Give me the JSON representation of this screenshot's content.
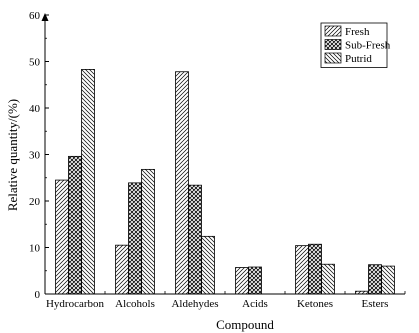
{
  "chart_data": {
    "type": "bar",
    "categories": [
      "Hydrocarbon",
      "Alcohols",
      "Aldehydes",
      "Acids",
      "Ketones",
      "Esters"
    ],
    "series": [
      {
        "name": "Fresh",
        "values": [
          24.5,
          10.5,
          47.8,
          5.7,
          10.4,
          0.6
        ],
        "pattern": "forward-hatch"
      },
      {
        "name": "Sub-Fresh",
        "values": [
          29.6,
          23.9,
          23.4,
          5.8,
          10.7,
          6.3
        ],
        "pattern": "crosshatch"
      },
      {
        "name": "Putrid",
        "values": [
          48.3,
          26.8,
          12.4,
          0,
          6.4,
          6.0
        ],
        "pattern": "back-hatch"
      }
    ],
    "xlabel": "Compound",
    "ylabel": "Relative quantity/(%)",
    "ylim": [
      0,
      60
    ],
    "yticks": [
      0,
      10,
      20,
      30,
      40,
      50,
      60
    ],
    "legend_position": "top-right",
    "grid": false
  }
}
